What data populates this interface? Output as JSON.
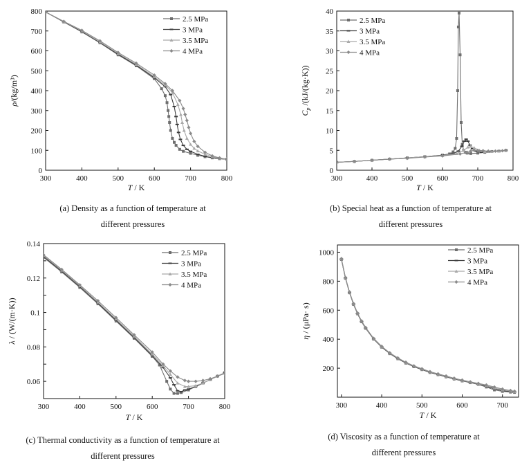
{
  "series_names": [
    "2.5 MPa",
    "3 MPa",
    "3.5 MPa",
    "4 MPa"
  ],
  "series_colors": [
    "#6e6e6e",
    "#3c3c3c",
    "#a9a9a9",
    "#8a8a8a"
  ],
  "chart_data": [
    {
      "id": "a",
      "type": "line",
      "title": "",
      "caption": [
        "(a) Density as a function of temperature at",
        "different pressures"
      ],
      "xlabel_italic": "T",
      "xlabel_rest": " / K",
      "ylabel_italic": "ρ",
      "ylabel_rest": "/(kg/m³)",
      "xlim": [
        300,
        800
      ],
      "ylim": [
        0,
        800
      ],
      "xticks": [
        300,
        400,
        500,
        600,
        700,
        800
      ],
      "yticks": [
        0,
        100,
        200,
        300,
        400,
        500,
        600,
        700,
        800
      ],
      "legend": "top-right",
      "series": [
        {
          "name": "2.5 MPa",
          "x": [
            300,
            350,
            400,
            450,
            500,
            550,
            600,
            620,
            630,
            635,
            638,
            640,
            642,
            645,
            650,
            655,
            660,
            670,
            680,
            700,
            720,
            740,
            760,
            780,
            800
          ],
          "y": [
            795,
            745,
            695,
            640,
            580,
            525,
            460,
            410,
            375,
            340,
            300,
            270,
            240,
            200,
            160,
            140,
            125,
            105,
            95,
            85,
            75,
            68,
            62,
            58,
            55
          ]
        },
        {
          "name": "3 MPa",
          "x": [
            300,
            350,
            400,
            450,
            500,
            550,
            600,
            630,
            645,
            655,
            660,
            663,
            667,
            672,
            680,
            690,
            700,
            720,
            740,
            760,
            780,
            800
          ],
          "y": [
            795,
            746,
            697,
            642,
            583,
            528,
            465,
            420,
            380,
            320,
            270,
            230,
            190,
            155,
            125,
            105,
            95,
            80,
            70,
            63,
            58,
            55
          ]
        },
        {
          "name": "3.5 MPa",
          "x": [
            300,
            350,
            400,
            450,
            500,
            550,
            600,
            630,
            650,
            665,
            673,
            677,
            682,
            690,
            700,
            710,
            720,
            740,
            760,
            780,
            800
          ],
          "y": [
            795,
            747,
            700,
            645,
            587,
            532,
            470,
            428,
            390,
            330,
            280,
            240,
            200,
            160,
            130,
            110,
            97,
            80,
            68,
            60,
            55
          ]
        },
        {
          "name": "4 MPa",
          "x": [
            300,
            350,
            400,
            450,
            500,
            550,
            600,
            630,
            650,
            670,
            680,
            685,
            690,
            695,
            700,
            710,
            720,
            740,
            760,
            780,
            800
          ],
          "y": [
            795,
            748,
            703,
            650,
            592,
            538,
            478,
            435,
            400,
            350,
            310,
            280,
            250,
            215,
            185,
            145,
            120,
            90,
            72,
            62,
            56
          ]
        }
      ]
    },
    {
      "id": "b",
      "type": "line",
      "title": "",
      "caption": [
        "(b) Special heat as a function of temperature at",
        "different pressures"
      ],
      "xlabel_italic": "T",
      "xlabel_rest": " / K",
      "ylabel_italic": "C",
      "ylabel_sub": "p",
      "ylabel_rest": " /(kJ/(kg·K))",
      "xlim": [
        300,
        800
      ],
      "ylim": [
        0,
        40
      ],
      "xticks": [
        300,
        400,
        500,
        600,
        700,
        800
      ],
      "yticks": [
        0,
        5,
        10,
        15,
        20,
        25,
        30,
        35,
        40
      ],
      "legend": "top-left",
      "series": [
        {
          "name": "2.5 MPa",
          "x": [
            300,
            350,
            400,
            450,
            500,
            550,
            600,
            620,
            630,
            636,
            640,
            643,
            645,
            647,
            650,
            653,
            656,
            660,
            665,
            670,
            680,
            700,
            720,
            740,
            760,
            780
          ],
          "y": [
            2.0,
            2.2,
            2.5,
            2.8,
            3.1,
            3.4,
            3.8,
            4.1,
            4.6,
            5.5,
            8,
            20,
            36,
            39.5,
            29,
            12,
            6.5,
            5,
            4.5,
            4.3,
            4.2,
            4.3,
            4.5,
            4.7,
            4.8,
            5.0
          ]
        },
        {
          "name": "3 MPa",
          "x": [
            300,
            350,
            400,
            450,
            500,
            550,
            600,
            630,
            645,
            655,
            662,
            667,
            672,
            678,
            685,
            695,
            710,
            730,
            760,
            780
          ],
          "y": [
            2.0,
            2.2,
            2.5,
            2.8,
            3.1,
            3.4,
            3.8,
            4.2,
            4.8,
            6.0,
            7.3,
            7.8,
            7.3,
            6.3,
            5.4,
            4.8,
            4.5,
            4.6,
            4.8,
            5.0
          ]
        },
        {
          "name": "3.5 MPa",
          "x": [
            300,
            350,
            400,
            450,
            500,
            550,
            600,
            640,
            660,
            672,
            680,
            690,
            705,
            720,
            740,
            760,
            780
          ],
          "y": [
            2.0,
            2.2,
            2.5,
            2.8,
            3.1,
            3.4,
            3.7,
            4.2,
            5.0,
            5.8,
            6.0,
            5.6,
            5.0,
            4.7,
            4.7,
            4.8,
            5.0
          ]
        },
        {
          "name": "4 MPa",
          "x": [
            300,
            350,
            400,
            450,
            500,
            550,
            600,
            650,
            670,
            680,
            690,
            700,
            715,
            730,
            750,
            770,
            780
          ],
          "y": [
            2.0,
            2.2,
            2.5,
            2.8,
            3.0,
            3.3,
            3.6,
            4.1,
            4.5,
            4.8,
            5.0,
            5.0,
            4.9,
            4.8,
            4.8,
            4.9,
            5.0
          ]
        }
      ]
    },
    {
      "id": "c",
      "type": "line",
      "title": "",
      "caption": [
        "(c) Thermal conductivity as a function of temperature at",
        "different pressures"
      ],
      "xlabel_italic": "T",
      "xlabel_rest": " / K",
      "ylabel_italic": "λ",
      "ylabel_rest": " / (W/(m·K))",
      "xlim": [
        300,
        800
      ],
      "ylim": [
        0.05,
        0.14
      ],
      "ytick_labels_at": [
        0.06,
        0.08,
        0.1,
        0.12,
        0.14
      ],
      "ytick_labels": [
        "0.06",
        "0.08",
        "0.1",
        "0.12",
        "0.14"
      ],
      "xticks": [
        300,
        400,
        500,
        600,
        700,
        800
      ],
      "yticks": [
        0.05,
        0.06,
        0.07,
        0.08,
        0.09,
        0.1,
        0.11,
        0.12,
        0.13,
        0.14
      ],
      "legend": "top-right",
      "series": [
        {
          "name": "2.5 MPa",
          "x": [
            300,
            350,
            400,
            450,
            500,
            550,
            600,
            620,
            640,
            650,
            660,
            670,
            680,
            700,
            720,
            740,
            760,
            780,
            800
          ],
          "y": [
            0.132,
            0.1235,
            0.1145,
            0.105,
            0.095,
            0.085,
            0.0745,
            0.0695,
            0.06,
            0.0555,
            0.053,
            0.053,
            0.0535,
            0.055,
            0.057,
            0.059,
            0.061,
            0.063,
            0.065
          ]
        },
        {
          "name": "3 MPa",
          "x": [
            300,
            350,
            400,
            450,
            500,
            550,
            600,
            630,
            650,
            660,
            670,
            680,
            690,
            700,
            720,
            740,
            760,
            780,
            800
          ],
          "y": [
            0.1325,
            0.124,
            0.115,
            0.1055,
            0.0955,
            0.0855,
            0.075,
            0.068,
            0.062,
            0.058,
            0.0545,
            0.054,
            0.055,
            0.0555,
            0.057,
            0.059,
            0.061,
            0.063,
            0.065
          ]
        },
        {
          "name": "3.5 MPa",
          "x": [
            300,
            350,
            400,
            450,
            500,
            550,
            600,
            630,
            650,
            670,
            690,
            700,
            720,
            740,
            760,
            780,
            800
          ],
          "y": [
            0.133,
            0.1245,
            0.1155,
            0.106,
            0.0962,
            0.0862,
            0.0758,
            0.069,
            0.064,
            0.059,
            0.057,
            0.057,
            0.0575,
            0.059,
            0.061,
            0.063,
            0.065
          ]
        },
        {
          "name": "4 MPa",
          "x": [
            300,
            350,
            400,
            450,
            500,
            550,
            600,
            630,
            650,
            670,
            690,
            700,
            720,
            740,
            760,
            780,
            800
          ],
          "y": [
            0.1335,
            0.125,
            0.116,
            0.1068,
            0.097,
            0.087,
            0.077,
            0.07,
            0.066,
            0.0625,
            0.0605,
            0.06,
            0.06,
            0.0605,
            0.0615,
            0.063,
            0.0645
          ]
        }
      ]
    },
    {
      "id": "d",
      "type": "line",
      "title": "",
      "caption": [
        "(d) Viscosity as a function of temperature at",
        "different pressures"
      ],
      "xlabel_italic": "T",
      "xlabel_rest": " / K",
      "ylabel_italic": "η",
      "ylabel_rest": " / (μPa· s)",
      "xlim": [
        290,
        740
      ],
      "ylim": [
        0,
        1050
      ],
      "xticks": [
        300,
        400,
        500,
        600,
        700
      ],
      "yticks": [
        200,
        400,
        600,
        800,
        1000
      ],
      "legend": "top-right",
      "series": [
        {
          "name": "2.5 MPa",
          "x": [
            300,
            310,
            320,
            330,
            340,
            350,
            360,
            380,
            400,
            420,
            440,
            460,
            480,
            500,
            520,
            540,
            560,
            580,
            600,
            620,
            640,
            660,
            680,
            700,
            720,
            730
          ],
          "y": [
            950,
            820,
            720,
            640,
            575,
            520,
            475,
            400,
            345,
            300,
            265,
            235,
            210,
            190,
            170,
            155,
            140,
            125,
            112,
            100,
            88,
            70,
            50,
            40,
            35,
            33
          ]
        },
        {
          "name": "3 MPa",
          "x": [
            300,
            310,
            320,
            330,
            340,
            350,
            360,
            380,
            400,
            420,
            440,
            460,
            480,
            500,
            520,
            540,
            560,
            580,
            600,
            620,
            640,
            660,
            680,
            700,
            720,
            730
          ],
          "y": [
            952,
            822,
            722,
            642,
            577,
            522,
            477,
            402,
            347,
            302,
            267,
            237,
            212,
            192,
            172,
            157,
            142,
            127,
            114,
            102,
            90,
            76,
            58,
            45,
            38,
            35
          ]
        },
        {
          "name": "3.5 MPa",
          "x": [
            300,
            310,
            320,
            330,
            340,
            350,
            360,
            380,
            400,
            420,
            440,
            460,
            480,
            500,
            520,
            540,
            560,
            580,
            600,
            620,
            640,
            660,
            680,
            700,
            720,
            730
          ],
          "y": [
            954,
            824,
            724,
            644,
            579,
            524,
            479,
            404,
            349,
            304,
            269,
            239,
            214,
            194,
            174,
            159,
            144,
            129,
            116,
            104,
            92,
            80,
            64,
            50,
            42,
            38
          ]
        },
        {
          "name": "4 MPa",
          "x": [
            300,
            310,
            320,
            330,
            340,
            350,
            360,
            380,
            400,
            420,
            440,
            460,
            480,
            500,
            520,
            540,
            560,
            580,
            600,
            620,
            640,
            660,
            680,
            700,
            720,
            730
          ],
          "y": [
            956,
            826,
            726,
            646,
            581,
            526,
            481,
            406,
            351,
            306,
            271,
            241,
            216,
            196,
            176,
            161,
            146,
            131,
            118,
            106,
            95,
            84,
            70,
            56,
            46,
            41
          ]
        }
      ]
    }
  ]
}
